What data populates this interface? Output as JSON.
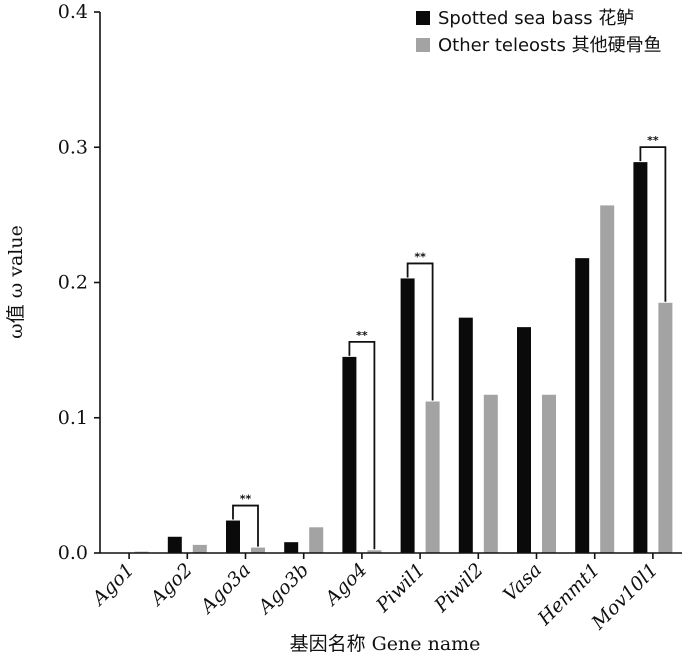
{
  "chart_data": {
    "type": "bar",
    "categories": [
      "Ago1",
      "Ago2",
      "Ago3a",
      "Ago3b",
      "Ago4",
      "Piwil1",
      "Piwil2",
      "Vasa",
      "Henmt1",
      "Mov10l1"
    ],
    "series": [
      {
        "name": "Spotted sea bass 花鲈",
        "color": "#0a0a0a",
        "values": [
          0.0,
          0.012,
          0.024,
          0.008,
          0.145,
          0.203,
          0.174,
          0.167,
          0.218,
          0.289
        ]
      },
      {
        "name": "Other teleosts 其他硬骨鱼",
        "color": "#a3a3a3",
        "values": [
          0.001,
          0.006,
          0.004,
          0.019,
          0.002,
          0.112,
          0.117,
          0.117,
          0.257,
          0.185
        ]
      }
    ],
    "significance": [
      {
        "category": "Ago3a",
        "label": "**"
      },
      {
        "category": "Ago4",
        "label": "**"
      },
      {
        "category": "Piwil1",
        "label": "**"
      },
      {
        "category": "Mov10l1",
        "label": "**"
      }
    ],
    "yticks": [
      "0.0",
      "0.1",
      "0.2",
      "0.3",
      "0.4"
    ],
    "ylim": [
      0,
      0.4
    ],
    "xlabel": "基因名称 Gene name",
    "ylabel": "ω值 ω value",
    "legend_position": "top-right",
    "grid": false
  }
}
